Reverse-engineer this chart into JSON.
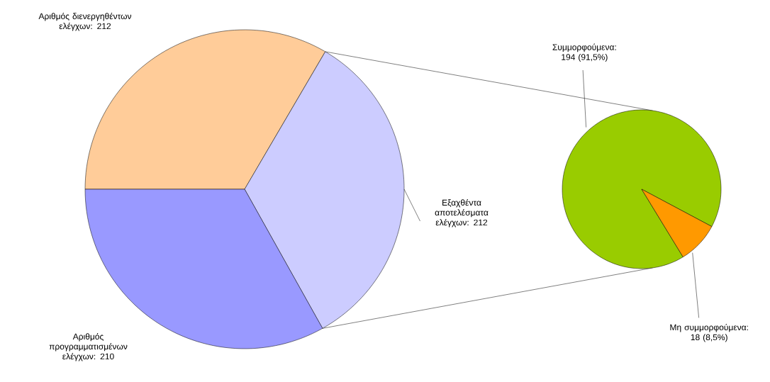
{
  "chart_data": [
    {
      "type": "pie",
      "categories": [
        "Αριθμός διενεργηθέντων ελέγχων",
        "Εξαχθέντα αποτελέσματα ελέγχων",
        "Αριθμός προγραμματισμένων ελέγχων"
      ],
      "values": [
        212,
        212,
        210
      ],
      "colors": [
        "#ffcc99",
        "#ccccff",
        "#9999ff"
      ],
      "value_labels": [
        ": 212",
        ": 212",
        ": 210"
      ]
    },
    {
      "type": "pie",
      "categories": [
        "Συμμορφούμενα",
        "Μη συμμορφούμενα"
      ],
      "values": [
        194,
        18
      ],
      "colors": [
        "#99cc00",
        "#ff9900"
      ],
      "value_labels": [
        ": 194 (91,5%)",
        ": 18 (8,5%)"
      ]
    }
  ]
}
